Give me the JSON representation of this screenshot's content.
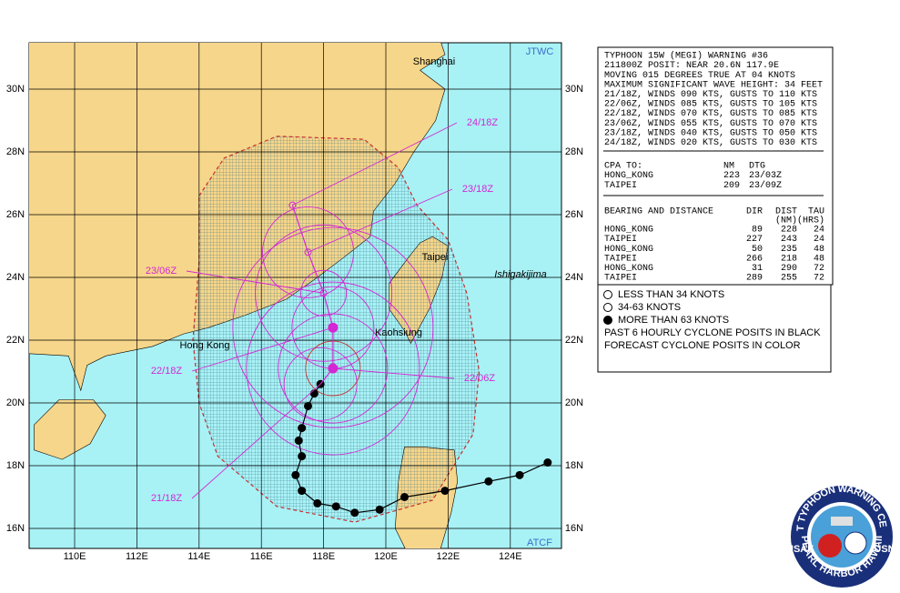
{
  "map": {
    "brand_top": "JTWC",
    "brand_bottom": "ATCF",
    "lat_labels": [
      "30N",
      "28N",
      "26N",
      "24N",
      "22N",
      "20N",
      "18N",
      "16N"
    ],
    "lon_labels": [
      "110E",
      "112E",
      "114E",
      "116E",
      "118E",
      "120E",
      "122E",
      "124E"
    ],
    "places": [
      "Shanghai",
      "Taipei",
      "Ishigakijima",
      "Kaohsiung",
      "Hong Kong"
    ],
    "time_labels": [
      "24/18Z",
      "23/18Z",
      "23/06Z",
      "22/18Z",
      "22/06Z",
      "21/18Z"
    ]
  },
  "warning": {
    "lines": [
      "TYPHOON 15W (MEGI) WARNING #36",
      "211800Z POSIT: NEAR 20.6N 117.9E",
      "MOVING 015 DEGREES TRUE AT 04 KNOTS",
      "MAXIMUM SIGNIFICANT WAVE HEIGHT: 34 FEET",
      "21/18Z, WINDS 090 KTS, GUSTS TO 110 KTS",
      "22/06Z, WINDS 085 KTS, GUSTS TO 105 KTS",
      "22/18Z, WINDS 070 KTS, GUSTS TO 085 KTS",
      "23/06Z, WINDS 055 KTS, GUSTS TO 070 KTS",
      "23/18Z, WINDS 040 KTS, GUSTS TO 050 KTS",
      "24/18Z, WINDS 020 KTS, GUSTS TO 030 KTS"
    ],
    "cpa": {
      "header": [
        "CPA TO:",
        "NM",
        "DTG"
      ],
      "rows": [
        [
          "HONG_KONG",
          "223",
          "23/03Z"
        ],
        [
          "TAIPEI",
          "209",
          "23/09Z"
        ]
      ]
    },
    "bearing": {
      "header": [
        "BEARING AND DISTANCE",
        "DIR",
        "DIST",
        "TAU"
      ],
      "subheader": [
        "(NM)",
        "(HRS)"
      ],
      "rows": [
        [
          "HONG_KONG",
          "89",
          "228",
          "24"
        ],
        [
          "TAIPEI",
          "227",
          "243",
          "24"
        ],
        [
          "HONG_KONG",
          "50",
          "235",
          "48"
        ],
        [
          "TAIPEI",
          "266",
          "218",
          "48"
        ],
        [
          "HONG_KONG",
          "31",
          "290",
          "72"
        ],
        [
          "TAIPEI",
          "289",
          "255",
          "72"
        ]
      ]
    }
  },
  "legend": {
    "items": [
      "LESS THAN 34 KNOTS",
      "34-63 KNOTS",
      "MORE THAN 63 KNOTS"
    ],
    "notes": [
      "PAST 6 HOURLY CYCLONE POSITS IN BLACK",
      "FORECAST CYCLONE POSITS IN COLOR"
    ]
  },
  "seal": {
    "top": "JOINT TYPHOON WARNING CENTER",
    "left": "USAF",
    "right": "USN",
    "bottom": "PEARL HARBOR HAWAII"
  }
}
